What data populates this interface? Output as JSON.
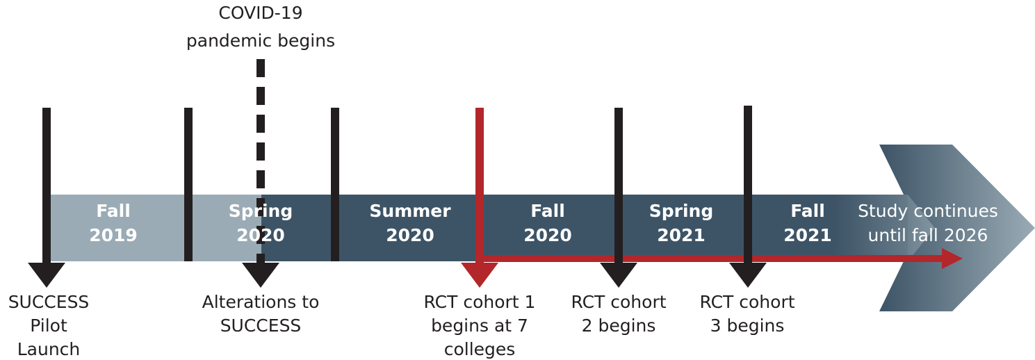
{
  "annotation": {
    "lines": [
      "COVID-19",
      "pandemic begins"
    ]
  },
  "periods": [
    {
      "lines": [
        "Fall",
        "2019"
      ]
    },
    {
      "lines": [
        "Spring",
        "2020"
      ]
    },
    {
      "lines": [
        "Summer",
        "2020"
      ]
    },
    {
      "lines": [
        "Fall",
        "2020"
      ]
    },
    {
      "lines": [
        "Spring",
        "2021"
      ]
    },
    {
      "lines": [
        "Fall",
        "2021"
      ]
    }
  ],
  "continuation": {
    "lines": [
      "Study continues",
      "until fall 2026"
    ]
  },
  "events": [
    {
      "lines": [
        "SUCCESS",
        "Pilot",
        "Launch"
      ]
    },
    {
      "lines": [
        "Alterations to",
        "SUCCESS"
      ]
    },
    {
      "lines": [
        "RCT cohort 1",
        "begins at 7",
        "colleges"
      ]
    },
    {
      "lines": [
        "RCT cohort",
        "2 begins"
      ]
    },
    {
      "lines": [
        "RCT cohort",
        "3 begins"
      ]
    }
  ]
}
